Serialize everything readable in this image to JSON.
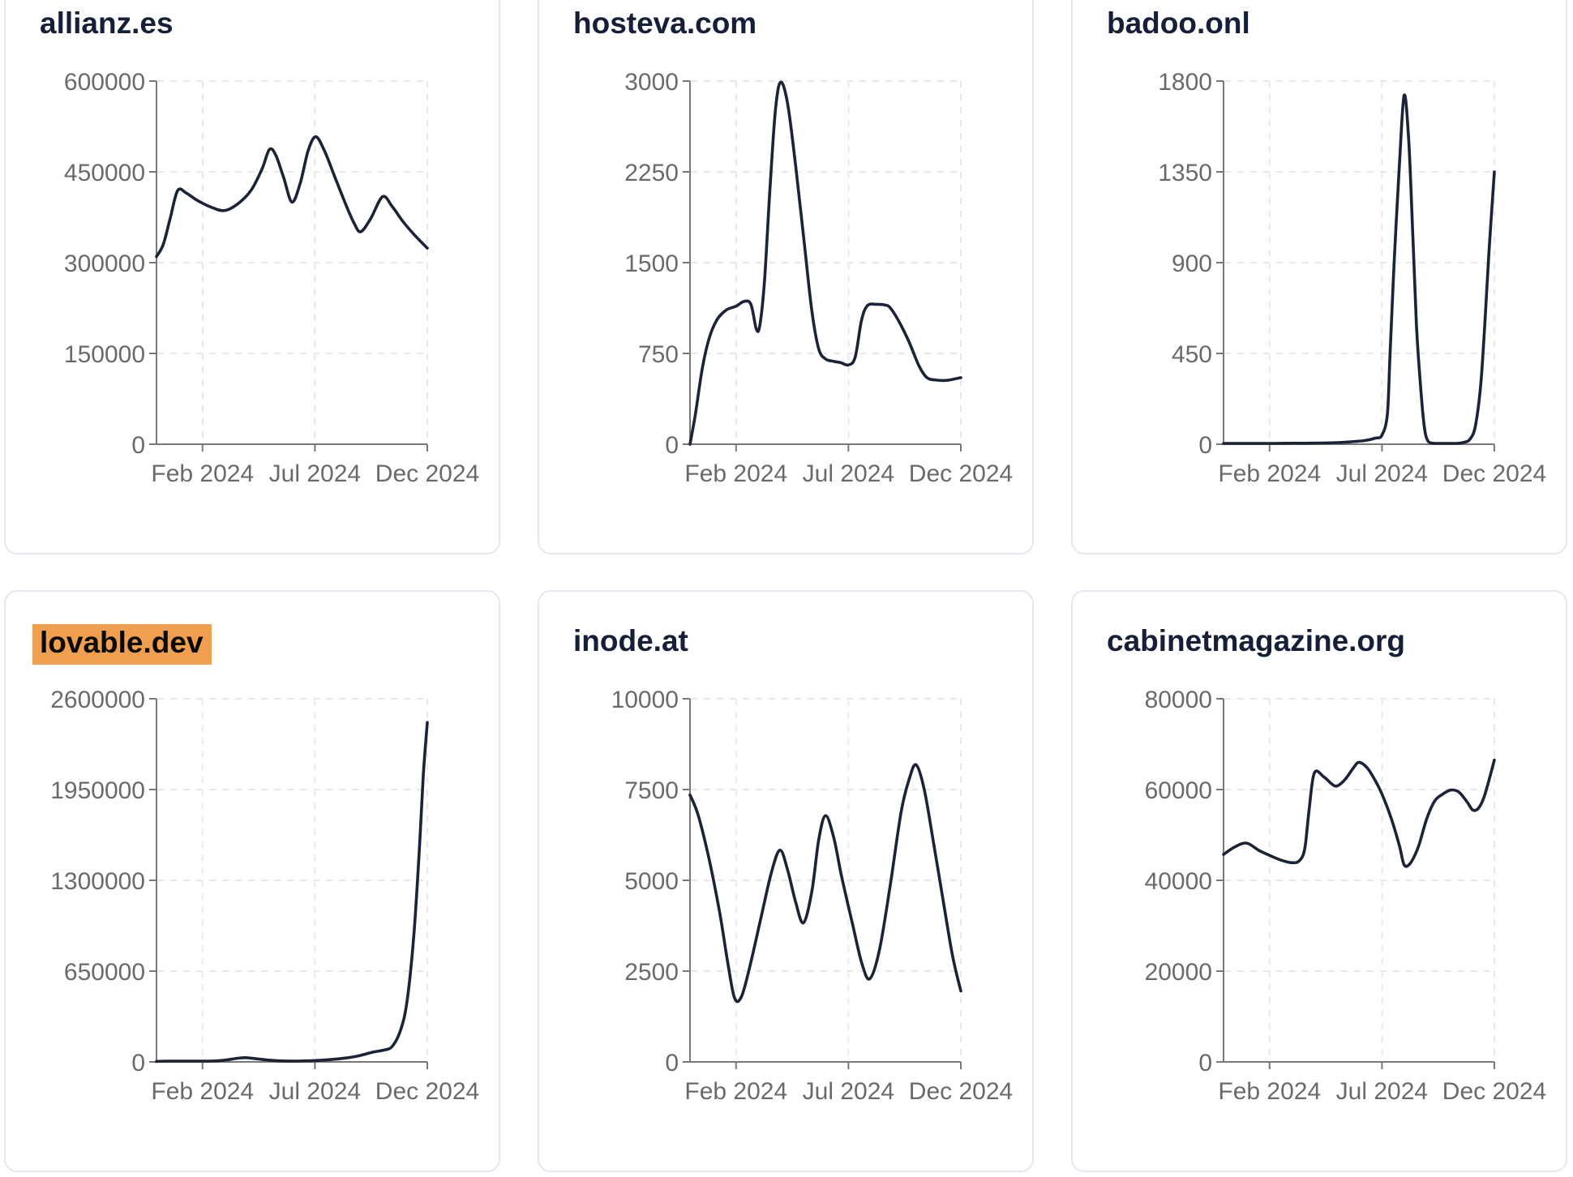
{
  "colors": {
    "line": "#1b2338",
    "title": "#161f38",
    "highlight": "#f09e4f",
    "highlight_text": "#0a0a0a",
    "axis": "#787878",
    "tick_label": "#6a6a6a",
    "grid": "#e9e9ed",
    "card_border": "#e4e8f1",
    "card_background": "#ffffff"
  },
  "x_axis": {
    "tick_labels": [
      "Feb 2024",
      "Jul 2024",
      "Dec 2024"
    ],
    "tick_positions": [
      0.17,
      0.585,
      1.0
    ]
  },
  "chart_data": [
    {
      "type": "line",
      "title": "allianz.es",
      "highlighted": false,
      "ylim": [
        0,
        600000
      ],
      "y_ticks": [
        600000,
        450000,
        300000,
        150000,
        0
      ],
      "x_tick_labels": [
        "Feb 2024",
        "Jul 2024",
        "Dec 2024"
      ],
      "x_tick_positions": [
        0.17,
        0.585,
        1.0
      ],
      "grid": true,
      "points": [
        [
          0,
          310000
        ],
        [
          0.025,
          330000
        ],
        [
          0.05,
          372000
        ],
        [
          0.078,
          419000
        ],
        [
          0.11,
          415000
        ],
        [
          0.15,
          403000
        ],
        [
          0.2,
          392000
        ],
        [
          0.25,
          386000
        ],
        [
          0.3,
          397000
        ],
        [
          0.35,
          420000
        ],
        [
          0.39,
          455000
        ],
        [
          0.417,
          487000
        ],
        [
          0.44,
          478000
        ],
        [
          0.47,
          440000
        ],
        [
          0.5,
          400000
        ],
        [
          0.53,
          430000
        ],
        [
          0.56,
          485000
        ],
        [
          0.588,
          508000
        ],
        [
          0.62,
          485000
        ],
        [
          0.66,
          440000
        ],
        [
          0.7,
          395000
        ],
        [
          0.73,
          365000
        ],
        [
          0.754,
          351000
        ],
        [
          0.79,
          372000
        ],
        [
          0.835,
          409000
        ],
        [
          0.87,
          393000
        ],
        [
          0.91,
          368000
        ],
        [
          0.95,
          347000
        ],
        [
          1,
          324000
        ]
      ]
    },
    {
      "type": "line",
      "title": "hosteva.com",
      "highlighted": false,
      "ylim": [
        0,
        3000
      ],
      "y_ticks": [
        3000,
        2250,
        1500,
        750,
        0
      ],
      "x_tick_labels": [
        "Feb 2024",
        "Jul 2024",
        "Dec 2024"
      ],
      "x_tick_positions": [
        0.17,
        0.585,
        1.0
      ],
      "grid": true,
      "points": [
        [
          0,
          0
        ],
        [
          0.02,
          250
        ],
        [
          0.045,
          620
        ],
        [
          0.07,
          870
        ],
        [
          0.1,
          1030
        ],
        [
          0.135,
          1110
        ],
        [
          0.17,
          1140
        ],
        [
          0.2,
          1180
        ],
        [
          0.225,
          1155
        ],
        [
          0.245,
          950
        ],
        [
          0.258,
          985
        ],
        [
          0.275,
          1350
        ],
        [
          0.295,
          2100
        ],
        [
          0.315,
          2750
        ],
        [
          0.334,
          2990
        ],
        [
          0.36,
          2820
        ],
        [
          0.39,
          2300
        ],
        [
          0.42,
          1700
        ],
        [
          0.45,
          1100
        ],
        [
          0.475,
          790
        ],
        [
          0.5,
          705
        ],
        [
          0.53,
          685
        ],
        [
          0.555,
          675
        ],
        [
          0.585,
          655
        ],
        [
          0.61,
          720
        ],
        [
          0.633,
          1020
        ],
        [
          0.655,
          1145
        ],
        [
          0.69,
          1155
        ],
        [
          0.72,
          1150
        ],
        [
          0.74,
          1125
        ],
        [
          0.775,
          1000
        ],
        [
          0.81,
          840
        ],
        [
          0.845,
          650
        ],
        [
          0.875,
          550
        ],
        [
          0.91,
          530
        ],
        [
          0.95,
          528
        ],
        [
          1,
          550
        ]
      ]
    },
    {
      "type": "line",
      "title": "badoo.onl",
      "highlighted": false,
      "ylim": [
        0,
        1800
      ],
      "y_ticks": [
        1800,
        1350,
        900,
        450,
        0
      ],
      "x_tick_labels": [
        "Feb 2024",
        "Jul 2024",
        "Dec 2024"
      ],
      "x_tick_positions": [
        0.17,
        0.585,
        1.0
      ],
      "grid": true,
      "points": [
        [
          0,
          4
        ],
        [
          0.06,
          4
        ],
        [
          0.12,
          4
        ],
        [
          0.18,
          4
        ],
        [
          0.24,
          5
        ],
        [
          0.3,
          5
        ],
        [
          0.36,
          6
        ],
        [
          0.42,
          8
        ],
        [
          0.47,
          12
        ],
        [
          0.52,
          18
        ],
        [
          0.56,
          30
        ],
        [
          0.585,
          45
        ],
        [
          0.605,
          150
        ],
        [
          0.615,
          450
        ],
        [
          0.63,
          900
        ],
        [
          0.65,
          1400
        ],
        [
          0.667,
          1730
        ],
        [
          0.684,
          1500
        ],
        [
          0.7,
          1000
        ],
        [
          0.712,
          600
        ],
        [
          0.724,
          350
        ],
        [
          0.74,
          100
        ],
        [
          0.755,
          15
        ],
        [
          0.78,
          4
        ],
        [
          0.82,
          4
        ],
        [
          0.86,
          4
        ],
        [
          0.89,
          10
        ],
        [
          0.91,
          25
        ],
        [
          0.93,
          90
        ],
        [
          0.95,
          300
        ],
        [
          0.965,
          600
        ],
        [
          0.98,
          950
        ],
        [
          1,
          1350
        ]
      ]
    },
    {
      "type": "line",
      "title": "lovable.dev",
      "highlighted": true,
      "ylim": [
        0,
        2600000
      ],
      "y_ticks": [
        2600000,
        1950000,
        1300000,
        650000,
        0
      ],
      "x_tick_labels": [
        "Feb 2024",
        "Jul 2024",
        "Dec 2024"
      ],
      "x_tick_positions": [
        0.17,
        0.585,
        1.0
      ],
      "grid": true,
      "points": [
        [
          0,
          3000
        ],
        [
          0.05,
          3000
        ],
        [
          0.1,
          3500
        ],
        [
          0.15,
          4000
        ],
        [
          0.2,
          5000
        ],
        [
          0.25,
          12000
        ],
        [
          0.3,
          26000
        ],
        [
          0.33,
          30000
        ],
        [
          0.37,
          22000
        ],
        [
          0.42,
          12000
        ],
        [
          0.47,
          7000
        ],
        [
          0.52,
          6000
        ],
        [
          0.58,
          9000
        ],
        [
          0.64,
          16000
        ],
        [
          0.7,
          28000
        ],
        [
          0.75,
          45000
        ],
        [
          0.8,
          70000
        ],
        [
          0.84,
          85000
        ],
        [
          0.87,
          110000
        ],
        [
          0.9,
          220000
        ],
        [
          0.925,
          430000
        ],
        [
          0.95,
          900000
        ],
        [
          0.97,
          1500000
        ],
        [
          0.985,
          2050000
        ],
        [
          1,
          2430000
        ]
      ]
    },
    {
      "type": "line",
      "title": "inode.at",
      "highlighted": false,
      "ylim": [
        0,
        10000
      ],
      "y_ticks": [
        10000,
        7500,
        5000,
        2500,
        0
      ],
      "x_tick_labels": [
        "Feb 2024",
        "Jul 2024",
        "Dec 2024"
      ],
      "x_tick_positions": [
        0.17,
        0.585,
        1.0
      ],
      "grid": true,
      "points": [
        [
          0,
          7350
        ],
        [
          0.03,
          6800
        ],
        [
          0.07,
          5600
        ],
        [
          0.11,
          4100
        ],
        [
          0.14,
          2700
        ],
        [
          0.165,
          1750
        ],
        [
          0.19,
          1800
        ],
        [
          0.22,
          2600
        ],
        [
          0.26,
          3900
        ],
        [
          0.3,
          5200
        ],
        [
          0.332,
          5830
        ],
        [
          0.36,
          5300
        ],
        [
          0.39,
          4400
        ],
        [
          0.419,
          3830
        ],
        [
          0.45,
          4700
        ],
        [
          0.475,
          6100
        ],
        [
          0.5,
          6780
        ],
        [
          0.53,
          6200
        ],
        [
          0.56,
          5100
        ],
        [
          0.6,
          3800
        ],
        [
          0.635,
          2700
        ],
        [
          0.664,
          2290
        ],
        [
          0.7,
          3100
        ],
        [
          0.74,
          4900
        ],
        [
          0.78,
          6900
        ],
        [
          0.81,
          7800
        ],
        [
          0.835,
          8180
        ],
        [
          0.865,
          7500
        ],
        [
          0.9,
          6000
        ],
        [
          0.94,
          4200
        ],
        [
          0.97,
          2900
        ],
        [
          1,
          1950
        ]
      ]
    },
    {
      "type": "line",
      "title": "cabinetmagazine.org",
      "highlighted": false,
      "ylim": [
        0,
        80000
      ],
      "y_ticks": [
        80000,
        60000,
        40000,
        20000,
        0
      ],
      "x_tick_labels": [
        "Feb 2024",
        "Jul 2024",
        "Dec 2024"
      ],
      "x_tick_positions": [
        0.17,
        0.585,
        1.0
      ],
      "grid": true,
      "points": [
        [
          0,
          45700
        ],
        [
          0.04,
          47300
        ],
        [
          0.085,
          48200
        ],
        [
          0.13,
          46600
        ],
        [
          0.17,
          45500
        ],
        [
          0.21,
          44500
        ],
        [
          0.25,
          43900
        ],
        [
          0.28,
          44300
        ],
        [
          0.3,
          47000
        ],
        [
          0.315,
          55000
        ],
        [
          0.335,
          63600
        ],
        [
          0.37,
          62800
        ],
        [
          0.4,
          61200
        ],
        [
          0.42,
          60800
        ],
        [
          0.45,
          62300
        ],
        [
          0.48,
          64800
        ],
        [
          0.5,
          66000
        ],
        [
          0.53,
          64800
        ],
        [
          0.56,
          62000
        ],
        [
          0.585,
          59000
        ],
        [
          0.62,
          53500
        ],
        [
          0.65,
          47500
        ],
        [
          0.667,
          43400
        ],
        [
          0.69,
          43800
        ],
        [
          0.72,
          47500
        ],
        [
          0.75,
          53500
        ],
        [
          0.78,
          57500
        ],
        [
          0.81,
          59000
        ],
        [
          0.84,
          59900
        ],
        [
          0.87,
          59400
        ],
        [
          0.9,
          57200
        ],
        [
          0.92,
          55500
        ],
        [
          0.94,
          55800
        ],
        [
          0.96,
          58000
        ],
        [
          0.98,
          62000
        ],
        [
          1,
          66500
        ]
      ]
    }
  ]
}
